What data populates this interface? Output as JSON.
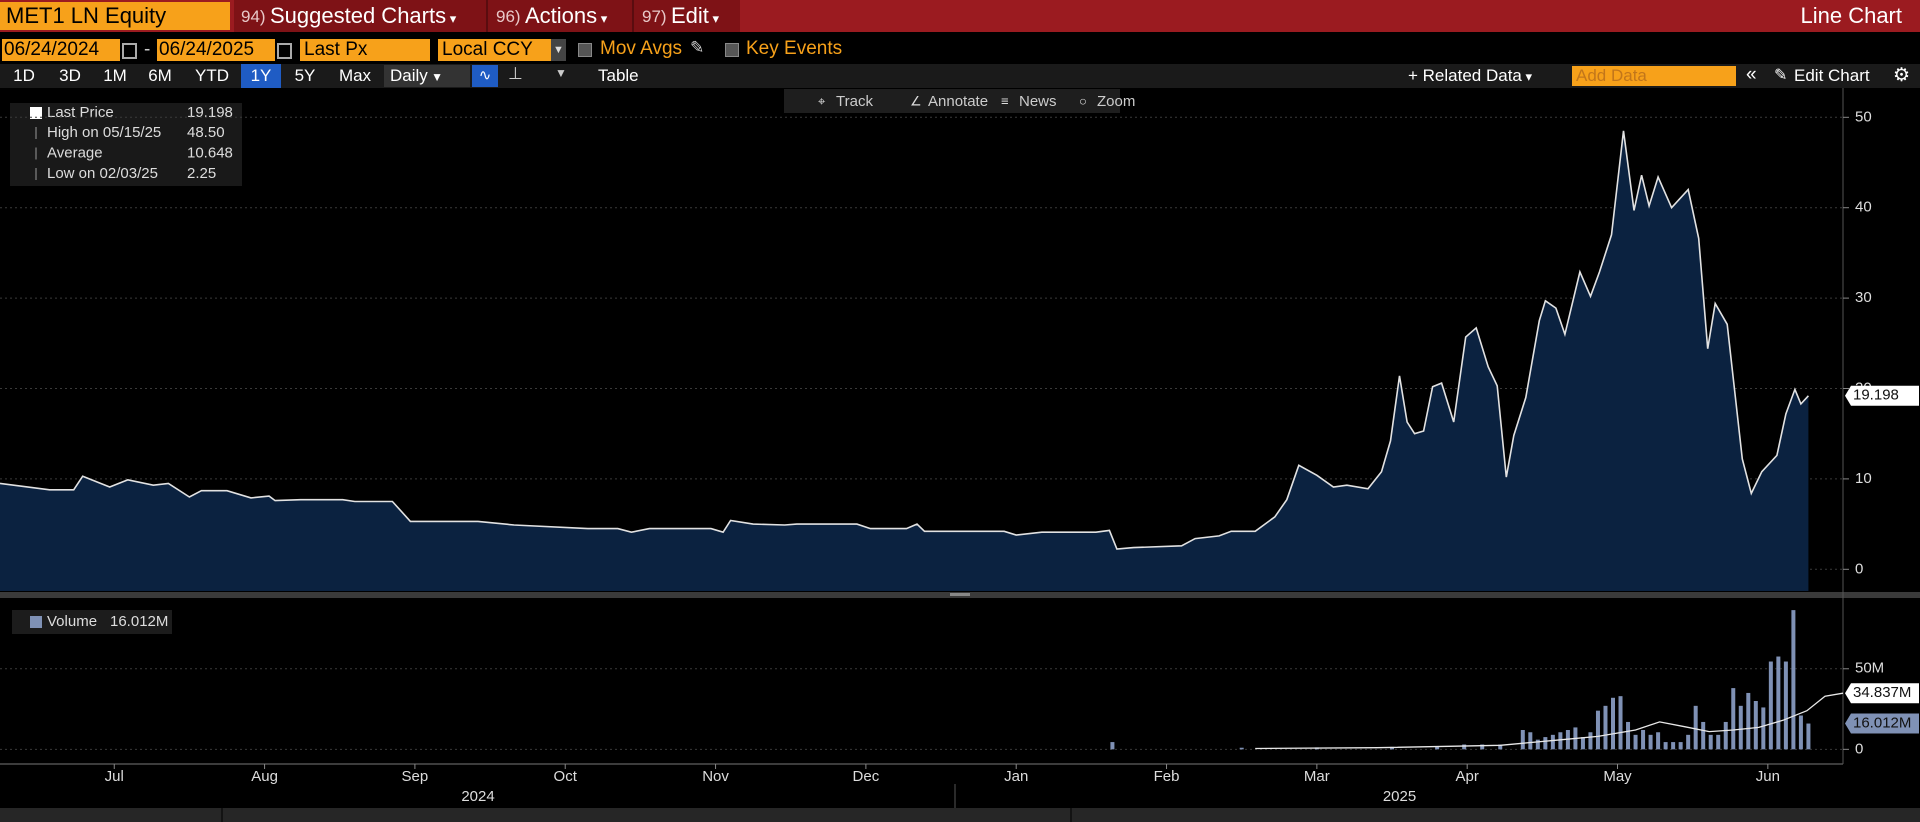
{
  "toolbar": {
    "ticker": "MET1 LN Equity",
    "menus": [
      {
        "key": "94)",
        "label": "Suggested Charts"
      },
      {
        "key": "96)",
        "label": "Actions"
      },
      {
        "key": "97)",
        "label": "Edit"
      }
    ],
    "chart_type": "Line Chart"
  },
  "controls": {
    "start_date": "06/24/2024",
    "separator": "-",
    "end_date": "06/24/2025",
    "field": "Last Px",
    "currency": "Local CCY",
    "mov_avgs": "Mov Avgs",
    "key_events": "Key Events"
  },
  "range_bar": {
    "periods": [
      "1D",
      "3D",
      "1M",
      "6M",
      "YTD",
      "1Y",
      "5Y",
      "Max"
    ],
    "selected_period": "1Y",
    "frequency": "Daily",
    "table": "Table",
    "related_data": "Related Data",
    "add_data": "Add Data",
    "edit_chart": "Edit Chart"
  },
  "tools": [
    "Track",
    "Annotate",
    "News",
    "Zoom"
  ],
  "chart_data": [
    {
      "type": "line",
      "x": [
        -0.26,
        0.07,
        0.23,
        0.29,
        0.47,
        0.59,
        0.76,
        0.86,
        1,
        1.08,
        1.25,
        1.41,
        1.53,
        1.57,
        1.74,
        2.02,
        2.1,
        2.35,
        2.47,
        2.92,
        3.16,
        3.65,
        3.85,
        3.94,
        4.06,
        4.47,
        4.55,
        4.6,
        4.75,
        4.96,
        5.04,
        5.44,
        5.53,
        5.77,
        5.84,
        5.89,
        6.42,
        6.5,
        6.67,
        7.03,
        7.12,
        7.17,
        7.28,
        7.6,
        7.69,
        7.85,
        7.93,
        8.09,
        8.22,
        8.3,
        8.38,
        8.5,
        8.61,
        8.7,
        8.84,
        8.93,
        8.99,
        9.05,
        9.1,
        9.15,
        9.21,
        9.27,
        9.33,
        9.41,
        9.49,
        9.56,
        9.64,
        9.7,
        9.76,
        9.81,
        9.89,
        9.98,
        10.02,
        10.09,
        10.15,
        10.25,
        10.32,
        10.38,
        10.46,
        10.54,
        10.61,
        10.66,
        10.71,
        10.77,
        10.86,
        10.97,
        11.04,
        11.1,
        11.15,
        11.23,
        11.33,
        11.39,
        11.46,
        11.56,
        11.62,
        11.68,
        11.72,
        11.77
      ],
      "series": [
        {
          "name": "Last Price",
          "color": "#e2e2e2",
          "fill": "#0b2240",
          "values": [
            9.5,
            8.8,
            8.8,
            10.3,
            9.1,
            9.9,
            9.3,
            9.5,
            8.0,
            8.7,
            8.7,
            7.9,
            8.1,
            7.6,
            7.7,
            7.7,
            7.5,
            7.5,
            5.3,
            5.3,
            4.9,
            4.5,
            4.5,
            4.1,
            4.5,
            4.5,
            4.1,
            5.4,
            5.0,
            4.9,
            5.0,
            5.0,
            4.5,
            4.5,
            5.0,
            4.2,
            4.2,
            3.8,
            4.1,
            4.1,
            4.3,
            2.25,
            2.4,
            2.6,
            3.4,
            3.7,
            4.2,
            4.2,
            5.8,
            7.7,
            11.5,
            10.4,
            9.1,
            9.3,
            8.9,
            10.8,
            14.2,
            21.4,
            16.3,
            15.0,
            15.3,
            20.2,
            20.6,
            16.3,
            25.7,
            26.7,
            22.4,
            20.3,
            10.2,
            14.8,
            19.0,
            27.5,
            29.7,
            28.9,
            26.0,
            32.9,
            30.2,
            32.9,
            37.0,
            48.5,
            39.7,
            43.6,
            40.2,
            43.4,
            40.0,
            42.0,
            36.6,
            24.4,
            29.4,
            27.1,
            12.2,
            8.4,
            10.8,
            12.6,
            17.2,
            19.9,
            18.3,
            19.198
          ],
          "last_label": "19.198"
        }
      ],
      "stats": [
        {
          "label": "High on 05/15/25",
          "value": "48.50"
        },
        {
          "label": "Average",
          "value": "10.648"
        },
        {
          "label": "Low on 02/03/25",
          "value": "2.25"
        }
      ],
      "xlim": [
        -0.26,
        12
      ],
      "ylim": [
        -2.4,
        52.8
      ],
      "yticks": [
        0,
        10,
        20,
        30,
        40,
        50
      ],
      "grid": true
    },
    {
      "type": "bar",
      "x": [
        7.14,
        8,
        8.5,
        9,
        9.3,
        9.48,
        9.6,
        9.72,
        9.87,
        9.92,
        9.97,
        10.02,
        10.07,
        10.12,
        10.17,
        10.22,
        10.27,
        10.32,
        10.37,
        10.42,
        10.47,
        10.52,
        10.57,
        10.62,
        10.67,
        10.72,
        10.77,
        10.82,
        10.87,
        10.92,
        10.97,
        11.02,
        11.07,
        11.12,
        11.17,
        11.22,
        11.27,
        11.32,
        11.37,
        11.42,
        11.47,
        11.52,
        11.57,
        11.62,
        11.67,
        11.72,
        11.77
      ],
      "series": [
        {
          "name": "Volume",
          "color": "#7f91b5",
          "values": [
            4.5,
            1,
            1.2,
            1.5,
            2,
            3,
            3,
            3,
            12,
            10.6,
            6,
            7.6,
            9,
            10.6,
            12,
            13.6,
            7.6,
            10.6,
            24,
            27,
            32,
            33,
            17,
            9,
            12,
            9,
            10.6,
            4.5,
            4.5,
            4.5,
            9,
            27,
            17,
            9,
            9,
            17,
            38,
            27,
            35,
            30,
            26,
            54.5,
            57.6,
            54.5,
            86.4,
            21,
            16.012
          ],
          "last_label": "16.012M"
        },
        {
          "type": "line",
          "color": "#e8e8e8",
          "x": [
            8.09,
            8.9,
            9.72,
            10.13,
            10.37,
            10.62,
            10.78,
            10.95,
            11.11,
            11.27,
            11.44,
            11.6,
            11.76,
            11.88,
            12
          ],
          "values": [
            0.5,
            1,
            2.5,
            6,
            8,
            12,
            17,
            14,
            11,
            12,
            13.6,
            18,
            24,
            33,
            34.837
          ],
          "last_label": "34.837M"
        }
      ],
      "xlim": [
        -0.26,
        12
      ],
      "ylim": [
        -9.1,
        90.2
      ],
      "yticks": [
        0,
        {
          "value": 50,
          "label": "50M"
        }
      ],
      "grid": true,
      "xticks": [
        {
          "value": 0.5,
          "label": "Jul"
        },
        {
          "value": 1.5,
          "label": "Aug"
        },
        {
          "value": 2.5,
          "label": "Sep"
        },
        {
          "value": 3.5,
          "label": "Oct"
        },
        {
          "value": 4.5,
          "label": "Nov"
        },
        {
          "value": 5.5,
          "label": "Dec"
        },
        {
          "value": 6.5,
          "label": "Jan"
        },
        {
          "value": 7.5,
          "label": "Feb"
        },
        {
          "value": 8.5,
          "label": "Mar"
        },
        {
          "value": 9.5,
          "label": "Apr"
        },
        {
          "value": 10.5,
          "label": "May"
        },
        {
          "value": 11.5,
          "label": "Jun"
        }
      ],
      "xgroups": [
        {
          "value": 2.92,
          "label": "2024"
        },
        {
          "value": 9.05,
          "label": "2025"
        }
      ]
    }
  ]
}
